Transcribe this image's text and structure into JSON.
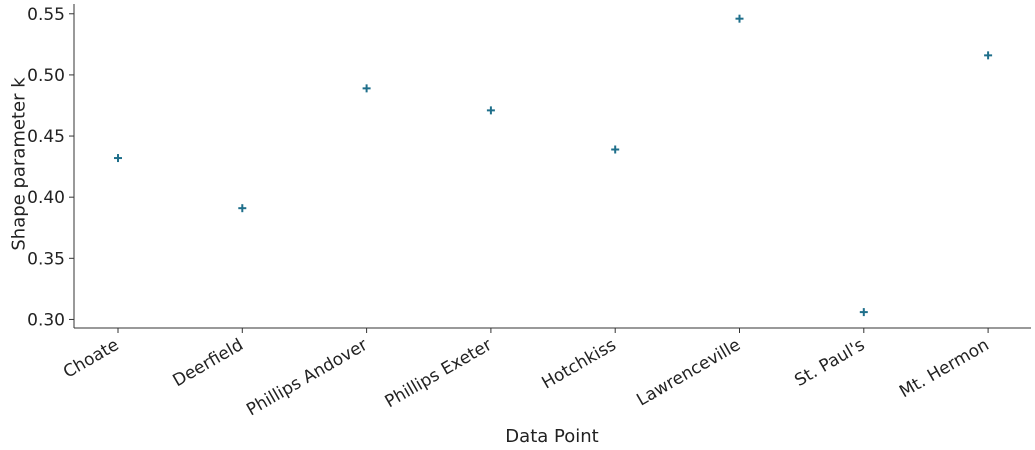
{
  "chart_data": {
    "type": "scatter",
    "categories": [
      "Choate",
      "Deerfield",
      "Phillips Andover",
      "Phillips Exeter",
      "Hotchkiss",
      "Lawrenceville",
      "St. Paul's",
      "Mt. Hermon"
    ],
    "values": [
      0.432,
      0.391,
      0.489,
      0.471,
      0.439,
      0.546,
      0.306,
      0.516
    ],
    "xlabel": "Data Point",
    "ylabel": "Shape parameter k",
    "ylim": [
      0.293,
      0.558
    ],
    "yticks": [
      "0.30",
      "0.35",
      "0.40",
      "0.45",
      "0.50",
      "0.55"
    ],
    "marker": "plus",
    "marker_color": "#1f6f8b",
    "grid": false,
    "legend": "none"
  }
}
